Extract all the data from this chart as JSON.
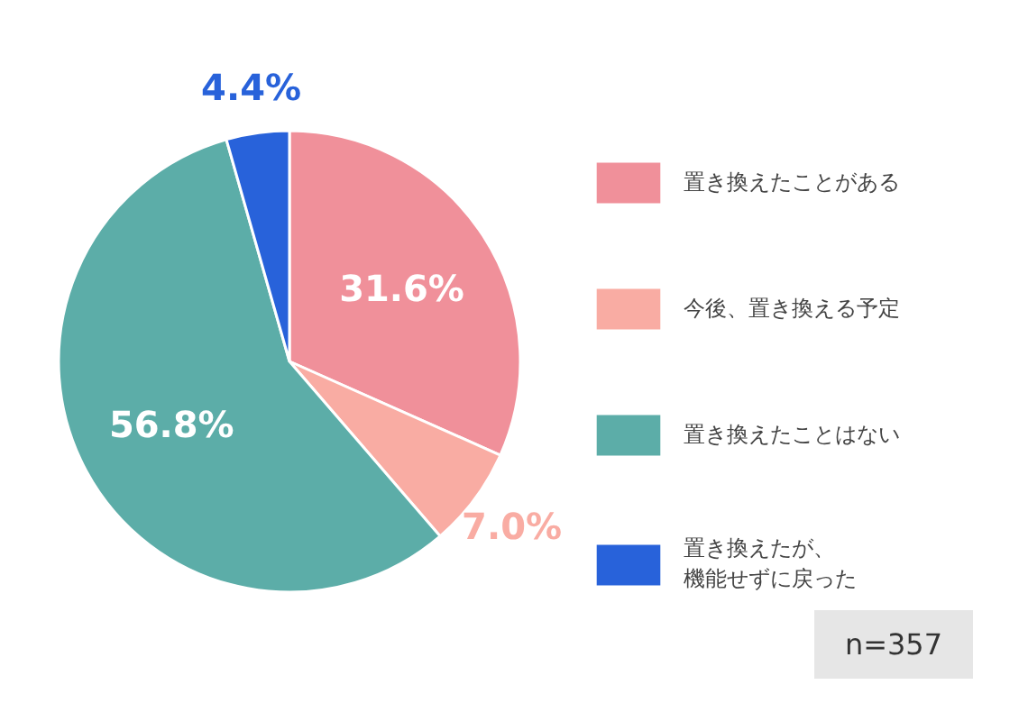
{
  "chart_data": {
    "type": "pie",
    "categories": [
      "置き換えたことがある",
      "今後、置き換える予定",
      "置き換えたことはない",
      "置き換えたが、機能せずに戻った"
    ],
    "values": [
      31.6,
      7.0,
      56.8,
      4.4
    ],
    "colors": [
      "#f0909a",
      "#f9aca3",
      "#5cada8",
      "#2862da"
    ],
    "value_labels": [
      "31.6%",
      "7.0%",
      "56.8%",
      "4.4%"
    ],
    "legend": "right",
    "annotations": [
      "n=357"
    ]
  }
}
